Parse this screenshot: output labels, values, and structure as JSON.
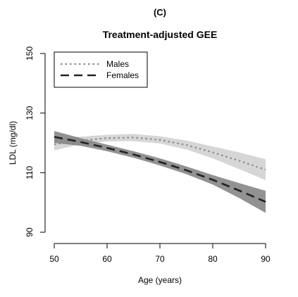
{
  "panel_label": "(C)",
  "chart_data": {
    "type": "line",
    "title": "Treatment-adjusted GEE",
    "xlabel": "Age (years)",
    "ylabel": "LDL (mg/dl)",
    "xlim": [
      50,
      90
    ],
    "ylim": [
      90,
      150
    ],
    "x_ticks": [
      50,
      60,
      70,
      80,
      90
    ],
    "y_ticks": [
      90,
      110,
      130,
      150
    ],
    "legend_position": "top-left",
    "grid": false,
    "series": [
      {
        "name": "Males",
        "line_style": "dotted",
        "line_color": "#8a8a8a",
        "band_color": "#cfcfcf",
        "x": [
          50,
          55,
          60,
          65,
          70,
          75,
          80,
          85,
          90
        ],
        "y": [
          119.5,
          120.8,
          121.6,
          121.8,
          121.0,
          119.3,
          116.8,
          114.0,
          111.0
        ],
        "lower": [
          117.5,
          119.5,
          120.5,
          120.6,
          119.8,
          117.8,
          114.8,
          111.2,
          107.5
        ],
        "upper": [
          121.5,
          122.1,
          122.7,
          123.0,
          122.2,
          120.8,
          118.8,
          116.8,
          114.5
        ]
      },
      {
        "name": "Females",
        "line_style": "dashed",
        "line_color": "#222222",
        "band_color": "#7f7f7f",
        "x": [
          50,
          55,
          60,
          65,
          70,
          75,
          80,
          85,
          90
        ],
        "y": [
          122.0,
          120.3,
          118.3,
          116.1,
          113.6,
          110.8,
          107.6,
          104.0,
          100.2
        ],
        "lower": [
          120.0,
          119.0,
          117.2,
          115.0,
          112.4,
          109.5,
          106.0,
          101.5,
          96.5
        ],
        "upper": [
          124.0,
          121.6,
          119.4,
          117.2,
          114.8,
          112.1,
          109.2,
          106.5,
          103.9
        ]
      }
    ]
  }
}
